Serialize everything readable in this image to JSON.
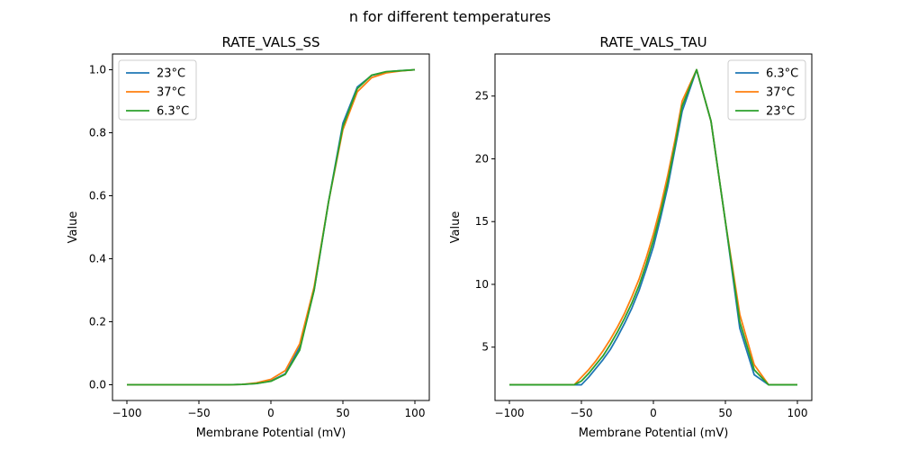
{
  "figure": {
    "suptitle": "n for different temperatures"
  },
  "chart_data": [
    {
      "type": "line",
      "title": "RATE_VALS_SS",
      "xlabel": "Membrane Potential (mV)",
      "ylabel": "Value",
      "xlim": [
        -110,
        110
      ],
      "ylim": [
        -0.05,
        1.05
      ],
      "xticks": [
        -100,
        -50,
        0,
        50,
        100
      ],
      "xtick_labels": [
        "−100",
        "−50",
        "0",
        "50",
        "100"
      ],
      "yticks": [
        0.0,
        0.2,
        0.4,
        0.6,
        0.8,
        1.0
      ],
      "ytick_labels": [
        "0.0",
        "0.2",
        "0.4",
        "0.6",
        "0.8",
        "1.0"
      ],
      "grid": false,
      "legend_position": "upper-left",
      "x": [
        -100,
        -90,
        -80,
        -70,
        -60,
        -50,
        -40,
        -30,
        -20,
        -10,
        0,
        10,
        20,
        30,
        40,
        50,
        60,
        70,
        80,
        90,
        100
      ],
      "series": [
        {
          "name": "23°C",
          "color": "#1f77b4",
          "values": [
            0.0,
            0.0,
            0.0,
            0.0,
            0.0,
            0.0,
            0.0,
            0.0,
            0.001,
            0.004,
            0.012,
            0.035,
            0.12,
            0.3,
            0.58,
            0.83,
            0.945,
            0.982,
            0.993,
            0.997,
            1.0
          ]
        },
        {
          "name": "37°C",
          "color": "#ff7f0e",
          "values": [
            0.0,
            0.0,
            0.0,
            0.0,
            0.0,
            0.0,
            0.0,
            0.0,
            0.001,
            0.006,
            0.017,
            0.045,
            0.13,
            0.31,
            0.58,
            0.81,
            0.93,
            0.975,
            0.99,
            0.996,
            1.0
          ]
        },
        {
          "name": "6.3°C",
          "color": "#2ca02c",
          "values": [
            0.0,
            0.0,
            0.0,
            0.0,
            0.0,
            0.0,
            0.0,
            0.0,
            0.001,
            0.004,
            0.011,
            0.033,
            0.11,
            0.3,
            0.58,
            0.82,
            0.94,
            0.983,
            0.994,
            0.997,
            1.0
          ]
        }
      ]
    },
    {
      "type": "line",
      "title": "RATE_VALS_TAU",
      "xlabel": "Membrane Potential (mV)",
      "ylabel": "Value",
      "xlim": [
        -110,
        110
      ],
      "ylim": [
        0.75,
        28.35
      ],
      "xticks": [
        -100,
        -50,
        0,
        50,
        100
      ],
      "xtick_labels": [
        "−100",
        "−50",
        "0",
        "50",
        "100"
      ],
      "yticks": [
        5,
        10,
        15,
        20,
        25
      ],
      "ytick_labels": [
        "5",
        "10",
        "15",
        "20",
        "25"
      ],
      "grid": false,
      "legend_position": "upper-right",
      "x": [
        -100,
        -90,
        -80,
        -70,
        -60,
        -55,
        -50,
        -45,
        -40,
        -35,
        -30,
        -25,
        -20,
        -15,
        -10,
        -5,
        0,
        5,
        10,
        15,
        20,
        30,
        40,
        50,
        60,
        70,
        80,
        90,
        100
      ],
      "series": [
        {
          "name": "6.3°C",
          "color": "#1f77b4",
          "values": [
            2.0,
            2.0,
            2.0,
            2.0,
            2.0,
            2.0,
            2.0,
            2.6,
            3.3,
            4.0,
            4.8,
            5.8,
            6.9,
            8.1,
            9.5,
            11.2,
            13.0,
            15.3,
            17.8,
            20.8,
            23.8,
            27.1,
            23.0,
            15.0,
            6.5,
            2.8,
            2.0,
            2.0,
            2.0
          ]
        },
        {
          "name": "37°C",
          "color": "#ff7f0e",
          "values": [
            2.0,
            2.0,
            2.0,
            2.0,
            2.0,
            2.0,
            2.6,
            3.2,
            3.9,
            4.7,
            5.6,
            6.6,
            7.7,
            9.0,
            10.4,
            12.1,
            14.0,
            16.2,
            18.7,
            21.5,
            24.6,
            27.1,
            23.0,
            15.0,
            7.6,
            3.6,
            2.0,
            2.0,
            2.0
          ]
        },
        {
          "name": "23°C",
          "color": "#2ca02c",
          "values": [
            2.0,
            2.0,
            2.0,
            2.0,
            2.0,
            2.0,
            2.3,
            2.9,
            3.6,
            4.3,
            5.2,
            6.2,
            7.3,
            8.5,
            9.9,
            11.6,
            13.5,
            15.7,
            18.2,
            21.1,
            24.2,
            27.1,
            23.0,
            15.0,
            7.0,
            3.2,
            2.0,
            2.0,
            2.0
          ]
        }
      ]
    }
  ]
}
